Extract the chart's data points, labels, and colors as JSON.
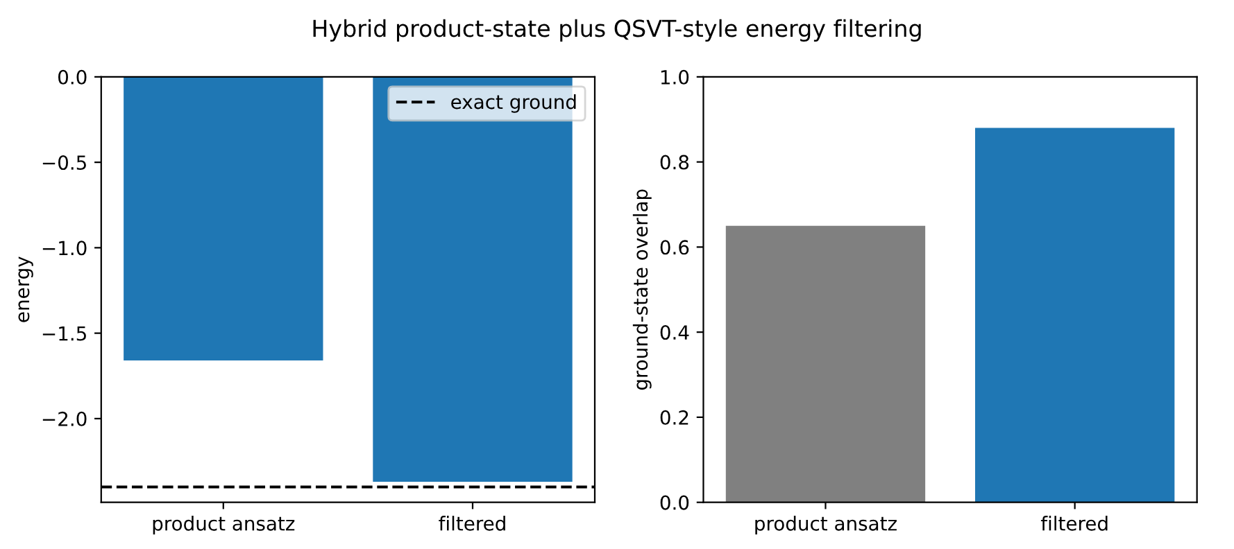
{
  "chart_data": [
    {
      "type": "bar",
      "title": "Hybrid product-state plus QSVT-style energy filtering",
      "ylabel": "energy",
      "categories": [
        "product ansatz",
        "filtered"
      ],
      "values": [
        -1.66,
        -2.37
      ],
      "colors": [
        "#1f77b4",
        "#1f77b4"
      ],
      "ylim": [
        -2.49,
        0
      ],
      "yticks": [
        {
          "value": 0,
          "label": "0.0"
        },
        {
          "value": -0.5,
          "label": "−0.5"
        },
        {
          "value": -1.0,
          "label": "−1.0"
        },
        {
          "value": -1.5,
          "label": "−1.5"
        },
        {
          "value": -2.0,
          "label": "−2.0"
        }
      ],
      "ref_lines": [
        {
          "axis": "y",
          "value": -2.4,
          "label": "exact ground",
          "color": "#000000",
          "line_style": "dashed"
        }
      ],
      "legend": "top right",
      "grid": false
    },
    {
      "type": "bar",
      "ylabel": "ground-state overlap",
      "categories": [
        "product ansatz",
        "filtered"
      ],
      "values": [
        0.65,
        0.88
      ],
      "colors": [
        "#808080",
        "#1f77b4"
      ],
      "ylim": [
        0,
        1
      ],
      "yticks": [
        {
          "value": 0,
          "label": "0.0"
        },
        {
          "value": 0.2,
          "label": "0.2"
        },
        {
          "value": 0.4,
          "label": "0.4"
        },
        {
          "value": 0.6,
          "label": "0.6"
        },
        {
          "value": 0.8,
          "label": "0.8"
        },
        {
          "value": 1.0,
          "label": "1.0"
        }
      ],
      "grid": false
    }
  ]
}
